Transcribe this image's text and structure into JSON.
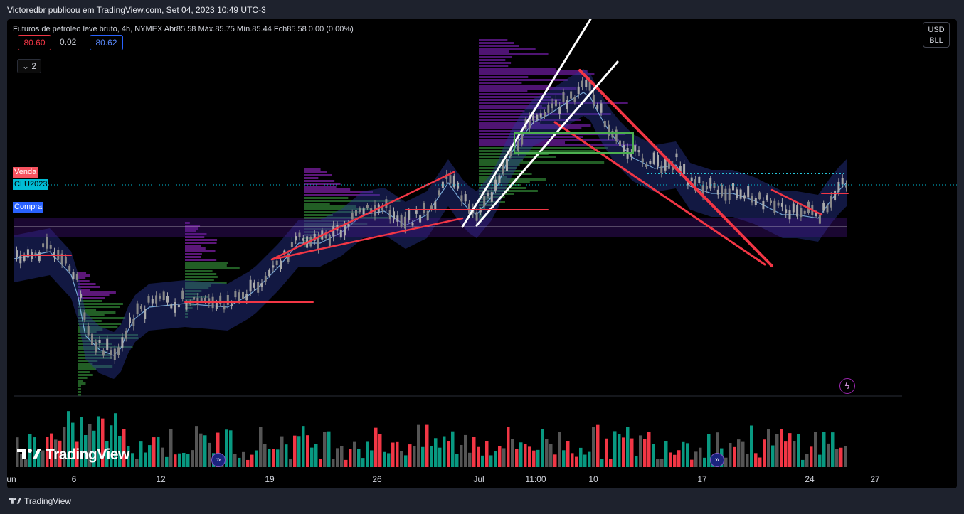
{
  "header": {
    "published_by": "Victoredbr publicou em TradingView.com, Set 04, 2023 10:49 UTC-3"
  },
  "legend": {
    "text": "Futuros de petróleo leve bruto, 4h, NYMEX  Abr85.58  Máx.85.75  Mín.85.44  Fch85.58  0.00 (0.00%)"
  },
  "quote": {
    "sell": "80.60",
    "spread": "0.02",
    "buy": "80.62"
  },
  "indicators_toggle": {
    "label": "2",
    "icon": "chevron-down-icon"
  },
  "currency": {
    "line1": "USD",
    "line2": "BLL"
  },
  "side_labels": {
    "venda": "Venda",
    "symbol": "CLU2023",
    "compra": "Compra"
  },
  "x_axis": {
    "labels": [
      "un",
      "6",
      "12",
      "19",
      "26",
      "Jul",
      "11:00",
      "10",
      "17",
      "24",
      "27"
    ]
  },
  "watermark": {
    "text": "TradingView"
  },
  "footer": {
    "text": "TradingView"
  },
  "icons": [
    "bolt-icon",
    "go-to-date-icon",
    "tradingview-logo-icon"
  ],
  "colors": {
    "background": "#000000",
    "up": "#aaaaaa",
    "down": "#888888",
    "trendline": "#f23645",
    "channel": "#ffffff",
    "volume_up": "#089981",
    "volume_down": "#f23645",
    "profile_green": "#2e7d32",
    "profile_purple": "#6a1b9a"
  }
}
